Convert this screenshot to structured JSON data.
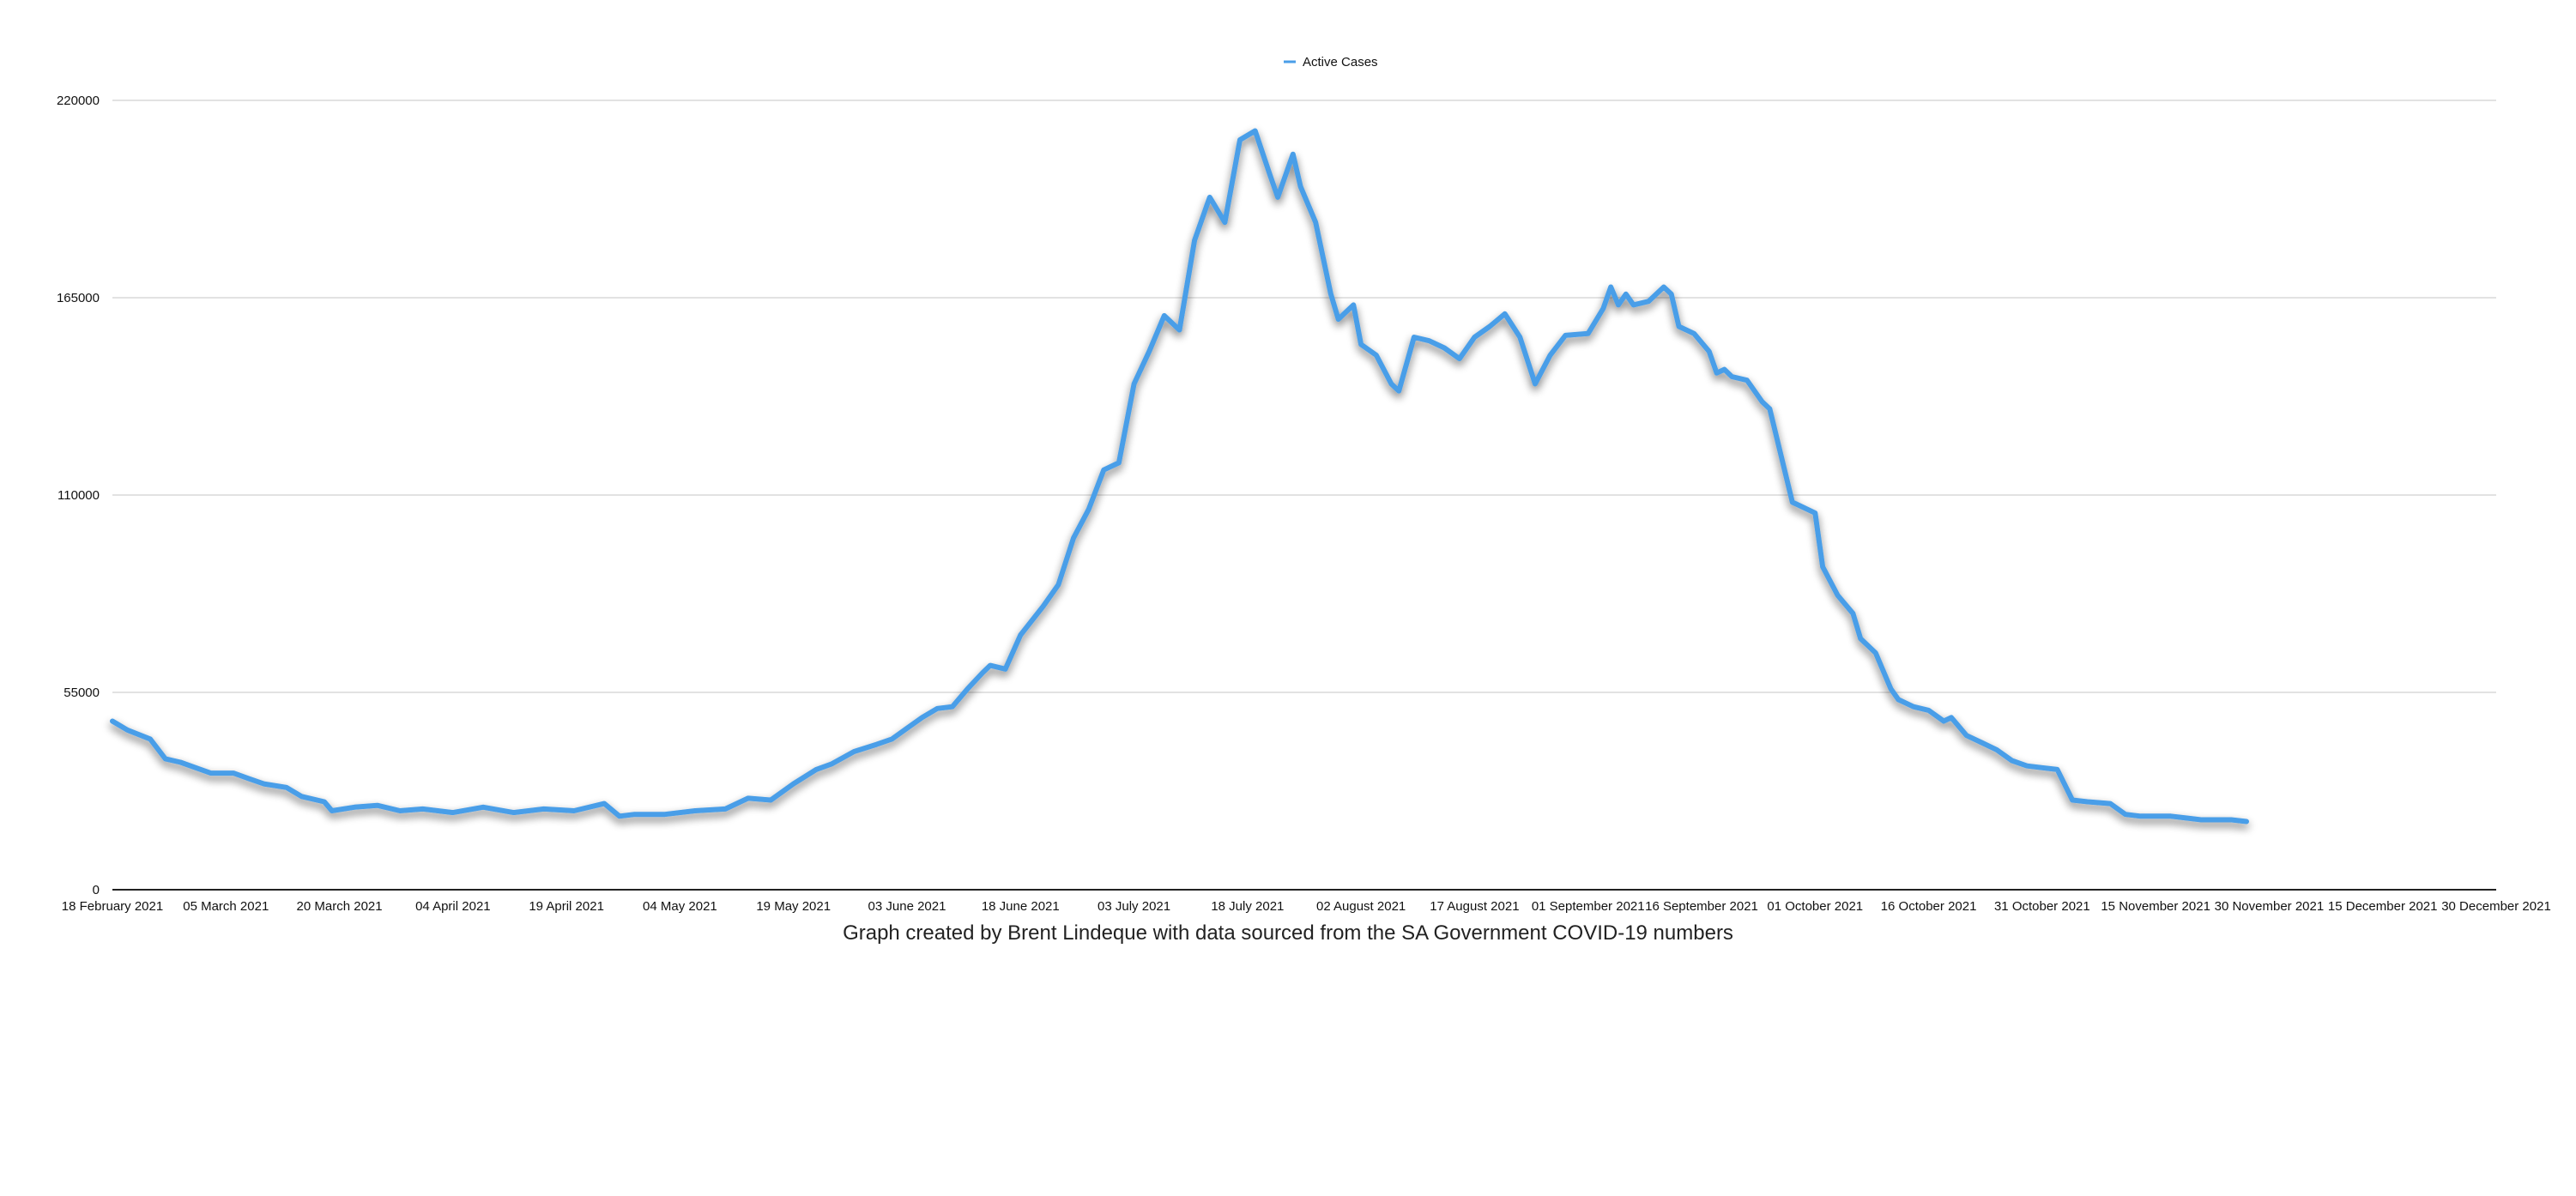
{
  "caption": "Graph created by Brent Lindeque with data sourced from the SA Government COVID-19 numbers",
  "colors": {
    "series": "#4a9ee8",
    "grid": "#d9d9d9",
    "axis": "#222222"
  },
  "chart_data": {
    "type": "line",
    "title": "",
    "xlabel": "",
    "ylabel": "",
    "legend_position": "top-center",
    "grid": true,
    "ylim": [
      0,
      220000
    ],
    "y_ticks": [
      0,
      55000,
      110000,
      165000,
      220000
    ],
    "xlim": [
      "2021-02-18",
      "2021-12-30"
    ],
    "x_tick_labels": [
      "18 February 2021",
      "05 March 2021",
      "20 March 2021",
      "04 April 2021",
      "19 April 2021",
      "04 May 2021",
      "19 May 2021",
      "03 June 2021",
      "18 June 2021",
      "03 July 2021",
      "18 July 2021",
      "02 August 2021",
      "17 August 2021",
      "01 September 2021",
      "16 September 2021",
      "01 October 2021",
      "16 October 2021",
      "31 October 2021",
      "15 November 2021",
      "30 November 2021",
      "15 December 2021",
      "30 December 2021"
    ],
    "x_tick_dates": [
      "2021-02-18",
      "2021-03-05",
      "2021-03-20",
      "2021-04-04",
      "2021-04-19",
      "2021-05-04",
      "2021-05-19",
      "2021-06-03",
      "2021-06-18",
      "2021-07-03",
      "2021-07-18",
      "2021-08-02",
      "2021-08-17",
      "2021-09-01",
      "2021-09-16",
      "2021-10-01",
      "2021-10-16",
      "2021-10-31",
      "2021-11-15",
      "2021-11-30",
      "2021-12-15",
      "2021-12-30"
    ],
    "series": [
      {
        "name": "Active Cases",
        "color": "#4a9ee8",
        "points": [
          [
            "2021-02-18",
            47000
          ],
          [
            "2021-02-20",
            44500
          ],
          [
            "2021-02-23",
            42000
          ],
          [
            "2021-02-25",
            36500
          ],
          [
            "2021-02-27",
            35500
          ],
          [
            "2021-03-01",
            34000
          ],
          [
            "2021-03-03",
            32500
          ],
          [
            "2021-03-06",
            32500
          ],
          [
            "2021-03-08",
            31000
          ],
          [
            "2021-03-10",
            29500
          ],
          [
            "2021-03-13",
            28500
          ],
          [
            "2021-03-15",
            26000
          ],
          [
            "2021-03-18",
            24500
          ],
          [
            "2021-03-19",
            22000
          ],
          [
            "2021-03-22",
            23000
          ],
          [
            "2021-03-25",
            23500
          ],
          [
            "2021-03-28",
            22000
          ],
          [
            "2021-03-31",
            22500
          ],
          [
            "2021-04-04",
            21500
          ],
          [
            "2021-04-08",
            23000
          ],
          [
            "2021-04-12",
            21500
          ],
          [
            "2021-04-16",
            22500
          ],
          [
            "2021-04-20",
            22000
          ],
          [
            "2021-04-24",
            24000
          ],
          [
            "2021-04-26",
            20500
          ],
          [
            "2021-04-28",
            21000
          ],
          [
            "2021-05-02",
            21000
          ],
          [
            "2021-05-06",
            22000
          ],
          [
            "2021-05-10",
            22500
          ],
          [
            "2021-05-13",
            25500
          ],
          [
            "2021-05-16",
            25000
          ],
          [
            "2021-05-19",
            29500
          ],
          [
            "2021-05-22",
            33500
          ],
          [
            "2021-05-24",
            35000
          ],
          [
            "2021-05-27",
            38500
          ],
          [
            "2021-05-30",
            40500
          ],
          [
            "2021-06-01",
            42000
          ],
          [
            "2021-06-03",
            45000
          ],
          [
            "2021-06-05",
            48000
          ],
          [
            "2021-06-07",
            50500
          ],
          [
            "2021-06-09",
            51000
          ],
          [
            "2021-06-11",
            56000
          ],
          [
            "2021-06-13",
            60500
          ],
          [
            "2021-06-14",
            62500
          ],
          [
            "2021-06-16",
            61500
          ],
          [
            "2021-06-18",
            71000
          ],
          [
            "2021-06-21",
            79000
          ],
          [
            "2021-06-23",
            85000
          ],
          [
            "2021-06-25",
            98000
          ],
          [
            "2021-06-27",
            106000
          ],
          [
            "2021-06-29",
            117000
          ],
          [
            "2021-07-01",
            119000
          ],
          [
            "2021-07-03",
            141000
          ],
          [
            "2021-07-05",
            150000
          ],
          [
            "2021-07-07",
            160000
          ],
          [
            "2021-07-09",
            156000
          ],
          [
            "2021-07-11",
            181000
          ],
          [
            "2021-07-13",
            193000
          ],
          [
            "2021-07-15",
            186000
          ],
          [
            "2021-07-17",
            209000
          ],
          [
            "2021-07-19",
            211500
          ],
          [
            "2021-07-21",
            199000
          ],
          [
            "2021-07-22",
            193000
          ],
          [
            "2021-07-24",
            205000
          ],
          [
            "2021-07-25",
            196000
          ],
          [
            "2021-07-27",
            186000
          ],
          [
            "2021-07-29",
            166000
          ],
          [
            "2021-07-30",
            159000
          ],
          [
            "2021-08-01",
            163000
          ],
          [
            "2021-08-02",
            152000
          ],
          [
            "2021-08-04",
            149000
          ],
          [
            "2021-08-06",
            141000
          ],
          [
            "2021-08-07",
            139000
          ],
          [
            "2021-08-09",
            154000
          ],
          [
            "2021-08-11",
            153000
          ],
          [
            "2021-08-13",
            151000
          ],
          [
            "2021-08-15",
            148000
          ],
          [
            "2021-08-17",
            154000
          ],
          [
            "2021-08-19",
            157000
          ],
          [
            "2021-08-21",
            160500
          ],
          [
            "2021-08-23",
            154000
          ],
          [
            "2021-08-25",
            141000
          ],
          [
            "2021-08-27",
            149000
          ],
          [
            "2021-08-29",
            154500
          ],
          [
            "2021-09-01",
            155000
          ],
          [
            "2021-09-03",
            162000
          ],
          [
            "2021-09-04",
            168000
          ],
          [
            "2021-09-05",
            163000
          ],
          [
            "2021-09-06",
            166000
          ],
          [
            "2021-09-07",
            163000
          ],
          [
            "2021-09-09",
            164000
          ],
          [
            "2021-09-11",
            168000
          ],
          [
            "2021-09-12",
            166000
          ],
          [
            "2021-09-13",
            157000
          ],
          [
            "2021-09-15",
            155000
          ],
          [
            "2021-09-17",
            150000
          ],
          [
            "2021-09-18",
            144000
          ],
          [
            "2021-09-19",
            145000
          ],
          [
            "2021-09-20",
            143000
          ],
          [
            "2021-09-22",
            142000
          ],
          [
            "2021-09-24",
            136000
          ],
          [
            "2021-09-25",
            134000
          ],
          [
            "2021-09-28",
            108000
          ],
          [
            "2021-09-29",
            107000
          ],
          [
            "2021-10-01",
            105000
          ],
          [
            "2021-10-02",
            90000
          ],
          [
            "2021-10-04",
            82000
          ],
          [
            "2021-10-06",
            77000
          ],
          [
            "2021-10-07",
            70000
          ],
          [
            "2021-10-09",
            66000
          ],
          [
            "2021-10-11",
            56000
          ],
          [
            "2021-10-12",
            53000
          ],
          [
            "2021-10-14",
            51000
          ],
          [
            "2021-10-16",
            50000
          ],
          [
            "2021-10-18",
            47000
          ],
          [
            "2021-10-19",
            48000
          ],
          [
            "2021-10-21",
            43000
          ],
          [
            "2021-10-23",
            41000
          ],
          [
            "2021-10-25",
            39000
          ],
          [
            "2021-10-27",
            36000
          ],
          [
            "2021-10-29",
            34500
          ],
          [
            "2021-10-31",
            34000
          ],
          [
            "2021-11-02",
            33500
          ],
          [
            "2021-11-04",
            25000
          ],
          [
            "2021-11-06",
            24500
          ],
          [
            "2021-11-09",
            24000
          ],
          [
            "2021-11-11",
            21000
          ],
          [
            "2021-11-13",
            20500
          ],
          [
            "2021-11-17",
            20500
          ],
          [
            "2021-11-19",
            20000
          ],
          [
            "2021-11-21",
            19500
          ],
          [
            "2021-11-25",
            19500
          ],
          [
            "2021-11-27",
            19000
          ]
        ]
      }
    ]
  }
}
